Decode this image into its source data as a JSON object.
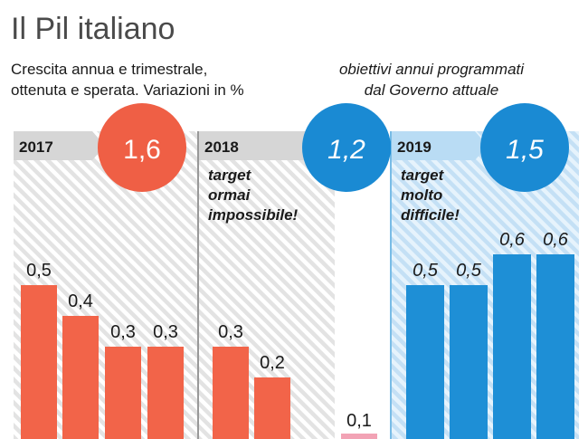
{
  "title": "Il Pil italiano",
  "subtitle_lines": [
    "Crescita annua e trimestrale,",
    "ottenuta e sperata. Variazioni in %"
  ],
  "objectives_lines": [
    "obiettivi annui programmati",
    "dal Governo attuale"
  ],
  "colors": {
    "actual": "#f26449",
    "forecast": "#1e8fd6",
    "target_2017": "#ef5f45",
    "target_future": "#1a8ad3",
    "hatch_grey": "#e3e3e3",
    "hatch_blue": "#cde6f8",
    "pink": "#f2a3b5",
    "text": "#1a1a1a",
    "title": "#4a4a4a"
  },
  "chart_data": {
    "type": "bar",
    "ylim": [
      0,
      0.7
    ],
    "groups": [
      {
        "year": "2017",
        "annual_target": "1,6",
        "note_lines": [],
        "quarters": [
          {
            "value": 0.5,
            "label": "0,5",
            "status": "actual"
          },
          {
            "value": 0.4,
            "label": "0,4",
            "status": "actual"
          },
          {
            "value": 0.3,
            "label": "0,3",
            "status": "actual"
          },
          {
            "value": 0.3,
            "label": "0,3",
            "status": "actual"
          }
        ]
      },
      {
        "year": "2018",
        "annual_target": "1,2",
        "note_lines": [
          "target",
          "ormai",
          "impossibile!"
        ],
        "quarters": [
          {
            "value": 0.3,
            "label": "0,3",
            "status": "actual"
          },
          {
            "value": 0.2,
            "label": "0,2",
            "status": "actual"
          },
          {
            "value": null,
            "label": "",
            "status": "actual"
          },
          {
            "value": 0.1,
            "label": "0,1",
            "status": "estimate"
          }
        ]
      },
      {
        "year": "2019",
        "annual_target": "1,5",
        "note_lines": [
          "target",
          "molto",
          "difficile!"
        ],
        "quarters": [
          {
            "value": 0.5,
            "label": "0,5",
            "status": "forecast"
          },
          {
            "value": 0.5,
            "label": "0,5",
            "status": "forecast"
          },
          {
            "value": 0.6,
            "label": "0,6",
            "status": "forecast"
          },
          {
            "value": 0.6,
            "label": "0,6",
            "status": "forecast"
          }
        ]
      }
    ]
  }
}
